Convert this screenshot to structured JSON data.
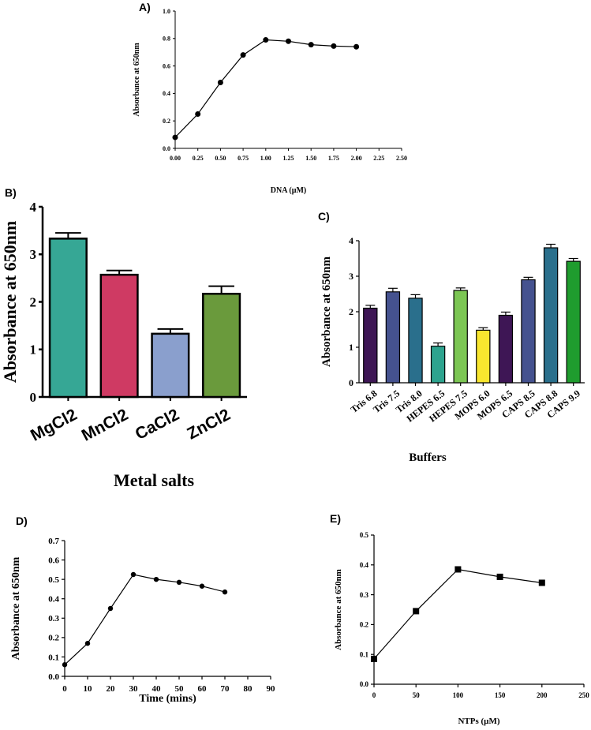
{
  "chart_data": [
    {
      "panel": "A)",
      "type": "line",
      "title": "",
      "xlabel": "DNA (µM)",
      "ylabel": "Absorbance at 650nm",
      "x": [
        0.0,
        0.25,
        0.5,
        0.75,
        1.0,
        1.25,
        1.5,
        1.75,
        2.0
      ],
      "y": [
        0.08,
        0.25,
        0.48,
        0.68,
        0.79,
        0.78,
        0.755,
        0.745,
        0.74
      ],
      "xlim": [
        0,
        2.5
      ],
      "ylim": [
        0,
        1.0
      ],
      "xticks": [
        "0.00",
        "0.25",
        "0.50",
        "0.75",
        "1.00",
        "1.25",
        "1.50",
        "1.75",
        "2.00",
        "2.25",
        "2.50"
      ],
      "yticks": [
        "0.0",
        "0.2",
        "0.4",
        "0.6",
        "0.8",
        "1.0"
      ],
      "marker": "circle",
      "grid": false
    },
    {
      "panel": "B)",
      "type": "bar",
      "title": "",
      "xlabel": "Metal salts",
      "ylabel": "Absorbance at 650nm",
      "categories": [
        "MgCl2",
        "MnCl2",
        "CaCl2",
        "ZnCl2"
      ],
      "values": [
        3.33,
        2.57,
        1.33,
        2.17
      ],
      "errors": [
        0.12,
        0.09,
        0.1,
        0.16
      ],
      "colors": [
        "#36a795",
        "#cf3a63",
        "#8a9fcd",
        "#6a9a3c"
      ],
      "ylim": [
        0,
        4
      ],
      "yticks": [
        "0",
        "1",
        "2",
        "3",
        "4"
      ],
      "grid": false
    },
    {
      "panel": "C)",
      "type": "bar",
      "title": "",
      "xlabel": "Buffers",
      "ylabel": "Absorbance at 650nm",
      "categories": [
        "Tris 6.8",
        "Tris 7.5",
        "Tris 8.0",
        "HEPES 6.5",
        "HEPES 7.5",
        "MOPS 6.0",
        "MOPS 6.5",
        "CAPS 8.5",
        "CAPS 8.8",
        "CAPS 9.9"
      ],
      "values": [
        2.1,
        2.56,
        2.38,
        1.03,
        2.6,
        1.48,
        1.9,
        2.9,
        3.8,
        3.42
      ],
      "errors": [
        0.08,
        0.1,
        0.1,
        0.09,
        0.07,
        0.07,
        0.09,
        0.07,
        0.1,
        0.08
      ],
      "colors": [
        "#3e1655",
        "#45528f",
        "#2a6f8c",
        "#2da38e",
        "#7cc654",
        "#f8e62f",
        "#3e1655",
        "#45528f",
        "#2a6f8c",
        "#1f9c2e"
      ],
      "ylim": [
        0,
        4
      ],
      "yticks": [
        "0",
        "1",
        "2",
        "3",
        "4"
      ],
      "grid": false
    },
    {
      "panel": "D)",
      "type": "line",
      "title": "",
      "xlabel": "Time (mins)",
      "ylabel": "Absorbance at 650nm",
      "x": [
        0,
        10,
        20,
        30,
        40,
        50,
        60,
        70
      ],
      "y": [
        0.06,
        0.17,
        0.35,
        0.525,
        0.5,
        0.485,
        0.465,
        0.435
      ],
      "xlim": [
        0,
        90
      ],
      "ylim": [
        0,
        0.7
      ],
      "xticks": [
        "0",
        "10",
        "20",
        "30",
        "40",
        "50",
        "60",
        "70",
        "80",
        "90"
      ],
      "yticks": [
        "0.0",
        "0.1",
        "0.2",
        "0.3",
        "0.4",
        "0.5",
        "0.6",
        "0.7"
      ],
      "marker": "circle",
      "grid": false
    },
    {
      "panel": "E)",
      "type": "line",
      "title": "",
      "xlabel": "NTPs (µM)",
      "ylabel": "Absorbance at 650nm",
      "x": [
        0,
        50,
        100,
        150,
        200
      ],
      "y": [
        0.085,
        0.245,
        0.385,
        0.36,
        0.34
      ],
      "xlim": [
        0,
        250
      ],
      "ylim": [
        0,
        0.5
      ],
      "xticks": [
        "0",
        "50",
        "100",
        "150",
        "200",
        "250"
      ],
      "yticks": [
        "0.0",
        "0.1",
        "0.2",
        "0.3",
        "0.4",
        "0.5"
      ],
      "marker": "square",
      "grid": false
    }
  ]
}
